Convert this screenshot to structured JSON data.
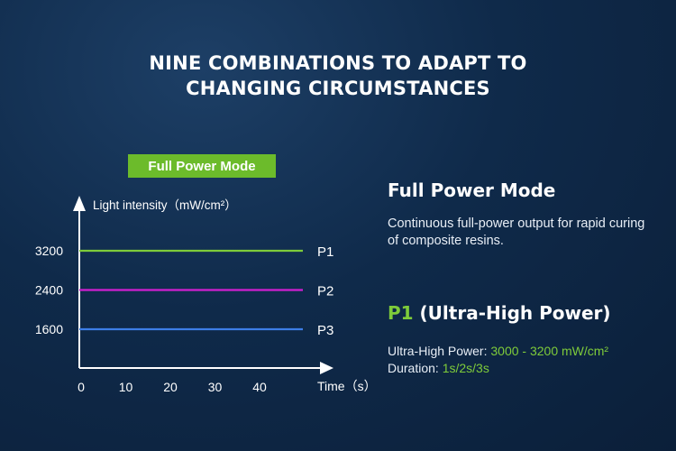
{
  "heading": {
    "line1": "NINE COMBINATIONS TO ADAPT TO",
    "line2": "CHANGING CIRCUMSTANCES"
  },
  "mode_badge": "Full Power Mode",
  "right": {
    "title": "Full Power Mode",
    "description": "Continuous full-power output for rapid curing of composite resins.",
    "p1_label": "P1",
    "p1_suffix": " (Ultra-High Power)",
    "power_label": "Ultra-High Power: ",
    "power_value": "3000 - 3200 mW/cm²",
    "duration_label": "Duration: ",
    "duration_value": "1s/2s/3s"
  },
  "colors": {
    "accent": "#6cbb2b",
    "p1": "#7ecb3a",
    "p2": "#d21fd2",
    "p3": "#3d7ee6"
  },
  "chart_data": {
    "type": "line",
    "title": "",
    "xlabel": "Time（s）",
    "ylabel": "Light intensity（mW/cm²）",
    "x_ticks": [
      0,
      10,
      20,
      30,
      40
    ],
    "y_ticks": [
      1600,
      2400,
      3200
    ],
    "xlim": [
      0,
      50
    ],
    "series": [
      {
        "name": "P1",
        "color": "#7ecb3a",
        "x": [
          0,
          48
        ],
        "y": [
          3200,
          3200
        ]
      },
      {
        "name": "P2",
        "color": "#d21fd2",
        "x": [
          0,
          48
        ],
        "y": [
          2400,
          2400
        ]
      },
      {
        "name": "P3",
        "color": "#3d7ee6",
        "x": [
          0,
          48
        ],
        "y": [
          1600,
          1600
        ]
      }
    ]
  }
}
